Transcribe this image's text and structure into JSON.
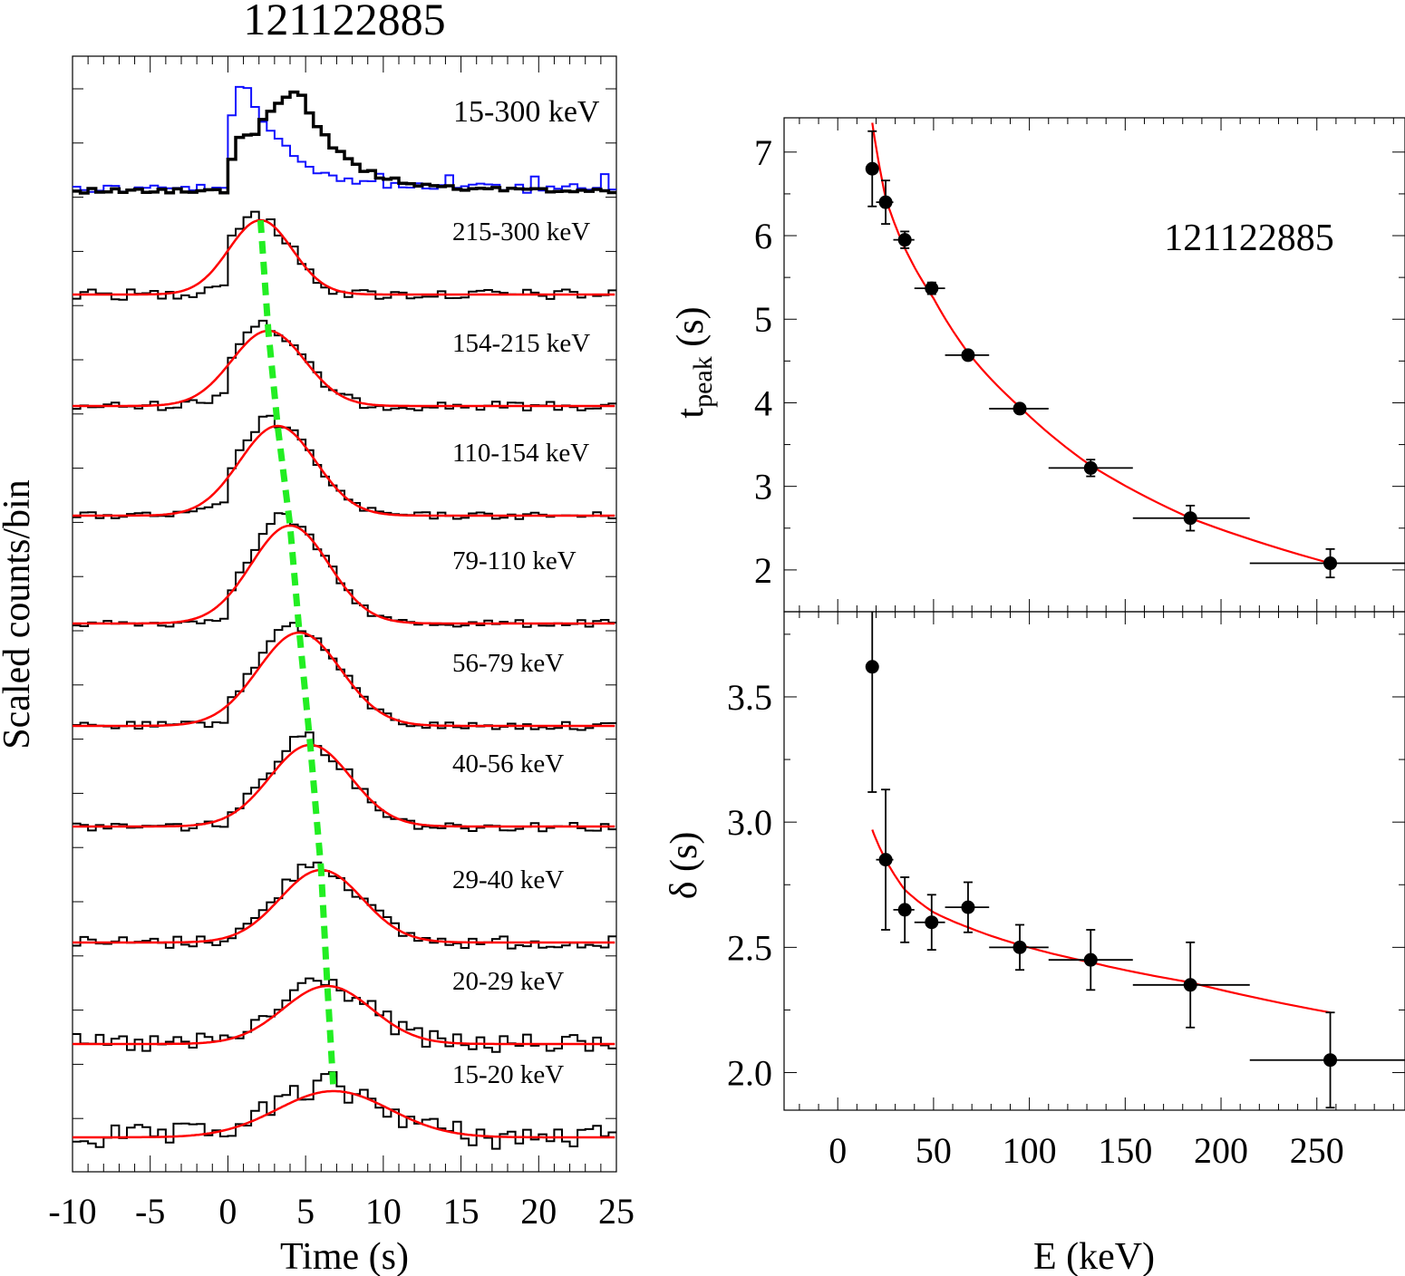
{
  "chart_data": [
    {
      "type": "line",
      "title": "121122885",
      "xlabel": "Time (s)",
      "ylabel": "Scaled counts/bin",
      "xlim": [
        -10,
        25
      ],
      "xticks": [
        "-10",
        "-5",
        "0",
        "5",
        "10",
        "15",
        "20",
        "25"
      ],
      "xtick_values": [
        -10,
        -5,
        0,
        5,
        10,
        15,
        20,
        25
      ],
      "total_band": {
        "label": "15-300 keV",
        "series": [
          {
            "name": "black",
            "color": "#000000"
          },
          {
            "name": "blue",
            "color": "#1010ff"
          }
        ]
      },
      "bands": [
        {
          "label": "215-300 keV",
          "peak_time": 2.1,
          "width": 2.05
        },
        {
          "label": "154-215 keV",
          "peak_time": 2.6,
          "width": 2.35
        },
        {
          "label": "110-154 keV",
          "peak_time": 3.2,
          "width": 2.45
        },
        {
          "label": "79-110 keV",
          "peak_time": 4.0,
          "width": 2.5
        },
        {
          "label": "56-79 keV",
          "peak_time": 4.6,
          "width": 2.66
        },
        {
          "label": "40-56 keV",
          "peak_time": 5.3,
          "width": 2.6
        },
        {
          "label": "29-40 keV",
          "peak_time": 6.0,
          "width": 2.65
        },
        {
          "label": "20-29 keV",
          "peak_time": 6.4,
          "width": 2.85
        },
        {
          "label": "15-20 keV",
          "peak_time": 6.8,
          "width": 3.62
        }
      ],
      "fit_color": "#ff0000",
      "peak_line_color": "#22ee22"
    },
    {
      "type": "scatter",
      "annotation": "121122885",
      "ylabel_main": "t",
      "ylabel_sub": "peak",
      "ylabel_unit": " (s)",
      "xlim": [
        -28,
        296
      ],
      "ylim": [
        1.5,
        7.41
      ],
      "yticks": [
        "2",
        "3",
        "4",
        "5",
        "6",
        "7"
      ],
      "ytick_values": [
        2,
        3,
        4,
        5,
        6,
        7
      ],
      "points": [
        {
          "E": 18,
          "Elo": 15,
          "Ehi": 20,
          "y": 6.8,
          "err": 0.45
        },
        {
          "E": 25,
          "Elo": 20,
          "Ehi": 29,
          "y": 6.4,
          "err": 0.26
        },
        {
          "E": 35,
          "Elo": 29,
          "Ehi": 40,
          "y": 5.95,
          "err": 0.1
        },
        {
          "E": 49,
          "Elo": 40,
          "Ehi": 56,
          "y": 5.37,
          "err": 0.07
        },
        {
          "E": 68,
          "Elo": 56,
          "Ehi": 79,
          "y": 4.57,
          "err": 0.05
        },
        {
          "E": 95,
          "Elo": 79,
          "Ehi": 110,
          "y": 3.93,
          "err": 0.05
        },
        {
          "E": 132,
          "Elo": 110,
          "Ehi": 154,
          "y": 3.22,
          "err": 0.1
        },
        {
          "E": 184,
          "Elo": 154,
          "Ehi": 215,
          "y": 2.62,
          "err": 0.15
        },
        {
          "E": 257,
          "Elo": 215,
          "Ehi": 300,
          "y": 2.08,
          "err": 0.17
        }
      ],
      "fit": {
        "E": [
          18,
          25,
          35,
          50,
          68,
          95,
          132,
          184,
          257
        ],
        "y": [
          7.35,
          6.45,
          5.85,
          5.25,
          4.6,
          3.95,
          3.25,
          2.62,
          2.08
        ]
      }
    },
    {
      "type": "scatter",
      "xlabel": "E (keV)",
      "ylabel": "δ (s)",
      "xlim": [
        -28,
        296
      ],
      "ylim": [
        1.85,
        3.84
      ],
      "xticks": [
        "0",
        "50",
        "100",
        "150",
        "200",
        "250"
      ],
      "xtick_values": [
        0,
        50,
        100,
        150,
        200,
        250
      ],
      "yticks": [
        "2.0",
        "2.5",
        "3.0",
        "3.5"
      ],
      "ytick_values": [
        2.0,
        2.5,
        3.0,
        3.5
      ],
      "points": [
        {
          "E": 18,
          "Elo": 15,
          "Ehi": 20,
          "y": 3.62,
          "err": 0.5
        },
        {
          "E": 25,
          "Elo": 20,
          "Ehi": 29,
          "y": 2.85,
          "err": 0.28
        },
        {
          "E": 35,
          "Elo": 29,
          "Ehi": 40,
          "y": 2.65,
          "err": 0.13
        },
        {
          "E": 49,
          "Elo": 40,
          "Ehi": 56,
          "y": 2.6,
          "err": 0.11
        },
        {
          "E": 68,
          "Elo": 56,
          "Ehi": 79,
          "y": 2.66,
          "err": 0.1
        },
        {
          "E": 95,
          "Elo": 79,
          "Ehi": 110,
          "y": 2.5,
          "err": 0.09
        },
        {
          "E": 132,
          "Elo": 110,
          "Ehi": 154,
          "y": 2.45,
          "err": 0.12
        },
        {
          "E": 184,
          "Elo": 154,
          "Ehi": 215,
          "y": 2.35,
          "err": 0.17
        },
        {
          "E": 257,
          "Elo": 215,
          "Ehi": 300,
          "y": 2.05,
          "err": 0.19
        }
      ],
      "fit": {
        "E": [
          18,
          25,
          35,
          50,
          68,
          95,
          132,
          184,
          257
        ],
        "y": [
          2.97,
          2.85,
          2.73,
          2.64,
          2.58,
          2.51,
          2.44,
          2.36,
          2.24
        ]
      }
    }
  ]
}
